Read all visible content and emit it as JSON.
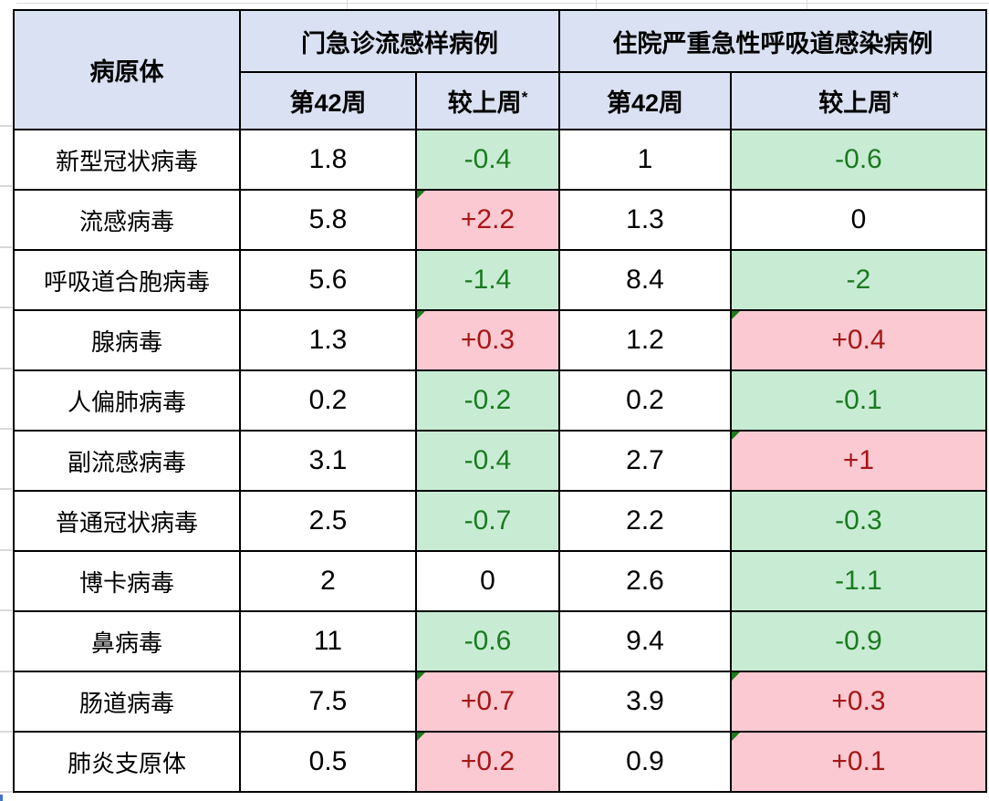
{
  "table": {
    "header": {
      "pathogen": "病原体",
      "group_opd": "门急诊流感样病例",
      "group_hosp": "住院严重急性呼吸道感染病例",
      "week_label": "第42周",
      "change_label": "较上周",
      "footnote_marker": "*"
    },
    "colors": {
      "header_bg": "#D9E1F2",
      "decrease_bg": "#C8ECD3",
      "decrease_text": "#1B7A21",
      "increase_bg": "#FAC9D1",
      "increase_text": "#A51717",
      "border": "#000000"
    },
    "rows": [
      {
        "pathogen": "新型冠状病毒",
        "opd_week": "1.8",
        "opd_change": "-0.4",
        "opd_trend": "down",
        "hosp_week": "1",
        "hosp_change": "-0.6",
        "hosp_trend": "down"
      },
      {
        "pathogen": "流感病毒",
        "opd_week": "5.8",
        "opd_change": "+2.2",
        "opd_trend": "up",
        "hosp_week": "1.3",
        "hosp_change": "0",
        "hosp_trend": "flat"
      },
      {
        "pathogen": "呼吸道合胞病毒",
        "opd_week": "5.6",
        "opd_change": "-1.4",
        "opd_trend": "down",
        "hosp_week": "8.4",
        "hosp_change": "-2",
        "hosp_trend": "down"
      },
      {
        "pathogen": "腺病毒",
        "opd_week": "1.3",
        "opd_change": "+0.3",
        "opd_trend": "up",
        "hosp_week": "1.2",
        "hosp_change": "+0.4",
        "hosp_trend": "up"
      },
      {
        "pathogen": "人偏肺病毒",
        "opd_week": "0.2",
        "opd_change": "-0.2",
        "opd_trend": "down",
        "hosp_week": "0.2",
        "hosp_change": "-0.1",
        "hosp_trend": "down"
      },
      {
        "pathogen": "副流感病毒",
        "opd_week": "3.1",
        "opd_change": "-0.4",
        "opd_trend": "down",
        "hosp_week": "2.7",
        "hosp_change": "+1",
        "hosp_trend": "up"
      },
      {
        "pathogen": "普通冠状病毒",
        "opd_week": "2.5",
        "opd_change": "-0.7",
        "opd_trend": "down",
        "hosp_week": "2.2",
        "hosp_change": "-0.3",
        "hosp_trend": "down"
      },
      {
        "pathogen": "博卡病毒",
        "opd_week": "2",
        "opd_change": "0",
        "opd_trend": "flat",
        "hosp_week": "2.6",
        "hosp_change": "-1.1",
        "hosp_trend": "down"
      },
      {
        "pathogen": "鼻病毒",
        "opd_week": "11",
        "opd_change": "-0.6",
        "opd_trend": "down",
        "hosp_week": "9.4",
        "hosp_change": "-0.9",
        "hosp_trend": "down"
      },
      {
        "pathogen": "肠道病毒",
        "opd_week": "7.5",
        "opd_change": "+0.7",
        "opd_trend": "up",
        "hosp_week": "3.9",
        "hosp_change": "+0.3",
        "hosp_trend": "up"
      },
      {
        "pathogen": "肺炎支原体",
        "opd_week": "0.5",
        "opd_change": "+0.2",
        "opd_trend": "up",
        "hosp_week": "0.9",
        "hosp_change": "+0.1",
        "hosp_trend": "up"
      }
    ]
  },
  "chart_data": {
    "type": "table",
    "title": "",
    "columns": [
      "病原体",
      "门急诊流感样病例 第42周",
      "门急诊流感样病例 较上周*",
      "住院严重急性呼吸道感染病例 第42周",
      "住院严重急性呼吸道感染病例 较上周*"
    ],
    "rows": [
      [
        "新型冠状病毒",
        1.8,
        -0.4,
        1,
        -0.6
      ],
      [
        "流感病毒",
        5.8,
        2.2,
        1.3,
        0
      ],
      [
        "呼吸道合胞病毒",
        5.6,
        -1.4,
        8.4,
        -2
      ],
      [
        "腺病毒",
        1.3,
        0.3,
        1.2,
        0.4
      ],
      [
        "人偏肺病毒",
        0.2,
        -0.2,
        0.2,
        -0.1
      ],
      [
        "副流感病毒",
        3.1,
        -0.4,
        2.7,
        1
      ],
      [
        "普通冠状病毒",
        2.5,
        -0.7,
        2.2,
        -0.3
      ],
      [
        "博卡病毒",
        2,
        0,
        2.6,
        -1.1
      ],
      [
        "鼻病毒",
        11,
        -0.6,
        9.4,
        -0.9
      ],
      [
        "肠道病毒",
        7.5,
        0.7,
        3.9,
        0.3
      ],
      [
        "肺炎支原体",
        0.5,
        0.2,
        0.9,
        0.1
      ]
    ],
    "legend_semantics": {
      "green_cell": "decrease vs last week",
      "pink_cell": "increase vs last week",
      "white_cell": "no change"
    }
  }
}
